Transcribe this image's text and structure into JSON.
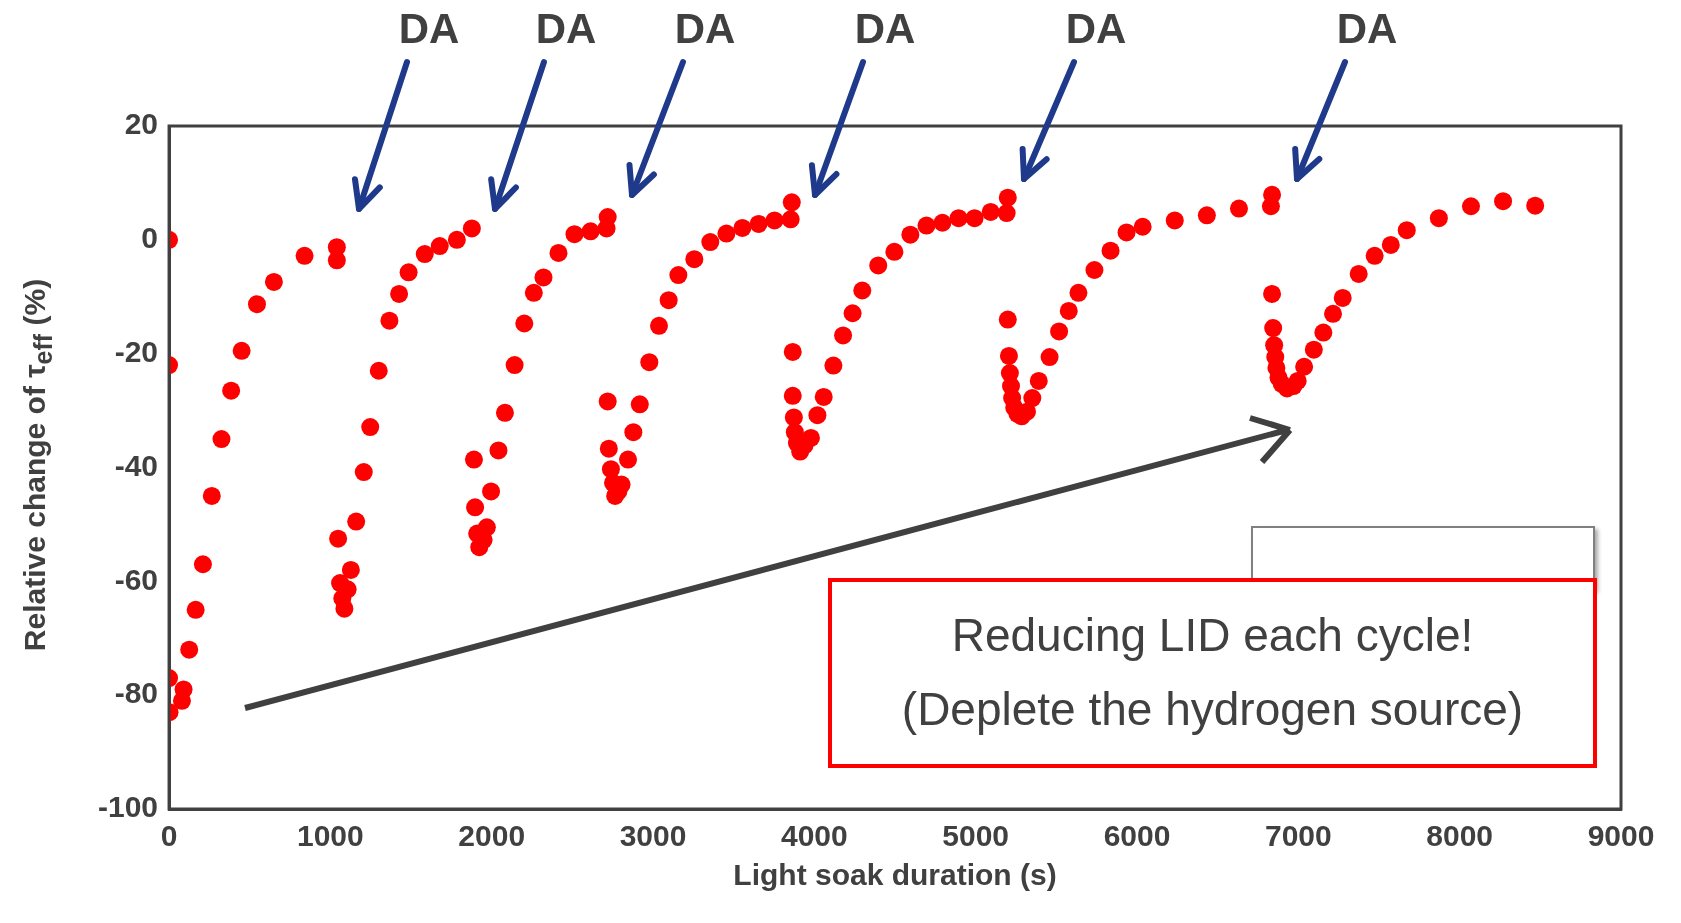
{
  "chart_data": {
    "type": "scatter",
    "xlabel": "Light soak duration (s)",
    "ylabel": "Relative change of τ$_{eff}$ (%)",
    "xlim": [
      0,
      9000
    ],
    "xticks": [
      0,
      1000,
      2000,
      3000,
      4000,
      5000,
      6000,
      7000,
      8000,
      9000
    ],
    "ylim": [
      -100,
      20
    ],
    "yticks": [
      -100,
      -80,
      -60,
      -40,
      -20,
      0,
      20
    ],
    "grid": false,
    "legend": false,
    "marker": "circle",
    "series": [
      {
        "color": "#ff0000",
        "x": [
          0,
          0,
          0,
          3,
          80,
          90,
          125,
          165,
          210,
          265,
          325,
          385,
          450,
          545,
          650,
          840,
          1040,
          1040,
          1048,
          1060,
          1074,
          1087,
          1107,
          1127,
          1160,
          1207,
          1247,
          1300,
          1366,
          1426,
          1485,
          1585,
          1678,
          1784,
          1877,
          1890,
          1897,
          1910,
          1923,
          1950,
          1970,
          1996,
          2042,
          2082,
          2142,
          2202,
          2261,
          2321,
          2414,
          2513,
          2613,
          2712,
          2719,
          2719,
          2726,
          2739,
          2752,
          2765,
          2785,
          2805,
          2845,
          2878,
          2918,
          2977,
          3037,
          3097,
          3157,
          3256,
          3355,
          3455,
          3554,
          3654,
          3753,
          3853,
          3860,
          3866,
          3866,
          3873,
          3879,
          3892,
          3912,
          3939,
          3979,
          4019,
          4058,
          4118,
          4178,
          4237,
          4297,
          4396,
          4496,
          4595,
          4695,
          4794,
          4894,
          4993,
          5093,
          5192,
          5199,
          5199,
          5206,
          5212,
          5219,
          5226,
          5239,
          5259,
          5285,
          5318,
          5351,
          5391,
          5458,
          5517,
          5577,
          5637,
          5736,
          5836,
          5935,
          6035,
          6234,
          6433,
          6632,
          6830,
          6837,
          6837,
          6844,
          6850,
          6857,
          6864,
          6877,
          6897,
          6930,
          6970,
          6996,
          7036,
          7096,
          7155,
          7215,
          7275,
          7374,
          7473,
          7573,
          7672,
          7871,
          8070,
          8269,
          8468
        ],
        "values": [
          0,
          -22,
          -77,
          -83,
          -81,
          -79,
          -72,
          -65,
          -57,
          -45,
          -35,
          -26.5,
          -19.5,
          -11.3,
          -7.4,
          -2.8,
          -1.3,
          -3.6,
          -52.5,
          -60.3,
          -63,
          -64.8,
          -61.4,
          -58,
          -49.5,
          -40.8,
          -32.9,
          -23,
          -14.2,
          -9.5,
          -5.7,
          -2.5,
          -1.1,
          0,
          2,
          -38.6,
          -47,
          -51.6,
          -54,
          -52.7,
          -50.5,
          -44.2,
          -37,
          -30.4,
          -22,
          -14.7,
          -9.3,
          -6.6,
          -2.3,
          1,
          1.5,
          2,
          4,
          -28.4,
          -36.7,
          -40.3,
          -42.7,
          -45,
          -44.2,
          -43,
          -38.6,
          -33.8,
          -28.9,
          -21.5,
          -15.1,
          -10.6,
          -6.2,
          -3.4,
          -0.4,
          1.1,
          2.1,
          2.8,
          3.4,
          3.6,
          6.6,
          -19.7,
          -27.4,
          -31.2,
          -33.8,
          -35.7,
          -37.2,
          -36.1,
          -34.8,
          -30.8,
          -27.6,
          -22.1,
          -16.8,
          -12.9,
          -8.9,
          -4.5,
          -2.1,
          0.9,
          2.5,
          3,
          3.8,
          3.8,
          4.9,
          4.7,
          7.4,
          -14,
          -20.4,
          -23.4,
          -25.7,
          -27.8,
          -29.5,
          -30.6,
          -31,
          -30.2,
          -27.8,
          -24.8,
          -20.6,
          -16.1,
          -12.5,
          -9.3,
          -5.3,
          -1.9,
          1.3,
          2.3,
          3.4,
          4.3,
          5.5,
          5.9,
          7.9,
          -9.5,
          -15.5,
          -18.5,
          -20.6,
          -22.5,
          -24.2,
          -25.3,
          -26.1,
          -25.7,
          -24.8,
          -22.3,
          -19.3,
          -16.3,
          -13,
          -10.2,
          -6,
          -2.8,
          -0.9,
          1.7,
          3.8,
          5.9,
          6.8,
          6
        ]
      }
    ],
    "annotations": [
      "DA",
      "DA",
      "DA",
      "DA",
      "DA",
      "DA",
      "Reducing LID each cycle!",
      "(Deplete the hydrogen source)"
    ]
  }
}
